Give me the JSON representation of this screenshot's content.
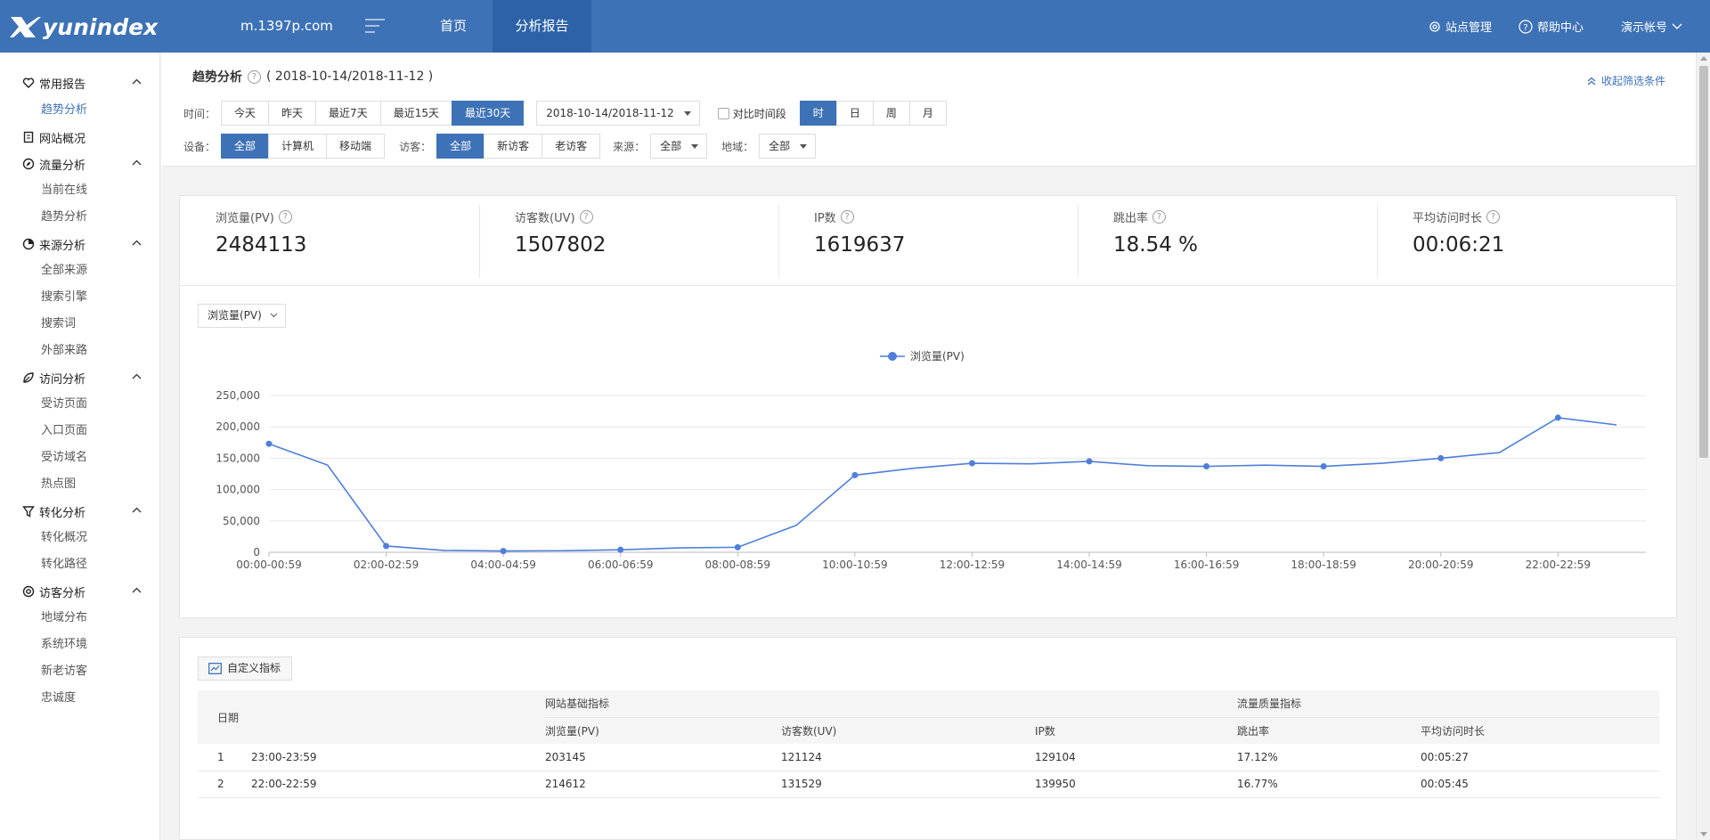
{
  "header": {
    "logo_text": "yunindex",
    "domain": "m.1397p.com",
    "nav": [
      {
        "label": "首页"
      },
      {
        "label": "分析报告"
      }
    ],
    "right": [
      {
        "label": "站点管理",
        "icon": "gear-icon"
      },
      {
        "label": "帮助中心",
        "icon": "help-icon"
      },
      {
        "label": "演示帐号",
        "icon": "chevron-down-icon"
      }
    ]
  },
  "sidebar": {
    "groups": [
      {
        "label": "常用报告",
        "icon": "heart-icon",
        "items": [
          "趋势分析"
        ]
      },
      {
        "label": "网站概况",
        "icon": "doc-icon",
        "items": []
      },
      {
        "label": "流量分析",
        "icon": "compass-icon",
        "items": [
          "当前在线",
          "趋势分析"
        ]
      },
      {
        "label": "来源分析",
        "icon": "pie-icon",
        "items": [
          "全部来源",
          "搜索引擎",
          "搜索词",
          "外部来路"
        ]
      },
      {
        "label": "访问分析",
        "icon": "leaf-icon",
        "items": [
          "受访页面",
          "入口页面",
          "受访域名",
          "热点图"
        ]
      },
      {
        "label": "转化分析",
        "icon": "funnel-icon",
        "items": [
          "转化概况",
          "转化路径"
        ]
      },
      {
        "label": "访客分析",
        "icon": "at-icon",
        "items": [
          "地域分布",
          "系统环境",
          "新老访客",
          "忠诚度"
        ]
      }
    ]
  },
  "filters": {
    "title": "趋势分析",
    "range_text": "( 2018-10-14/2018-11-12 )",
    "collapse_label": "收起筛选条件",
    "time_label": "时间：",
    "time_buttons": [
      "今天",
      "昨天",
      "最近7天",
      "最近15天",
      "最近30天"
    ],
    "time_active": "最近30天",
    "date_range": "2018-10-14/2018-11-12",
    "compare_label": "对比时间段",
    "granularity": [
      "时",
      "日",
      "周",
      "月"
    ],
    "granularity_active": "时",
    "device_label": "设备：",
    "device_buttons": [
      "全部",
      "计算机",
      "移动端"
    ],
    "visitor_label": "访客：",
    "visitor_buttons": [
      "全部",
      "新访客",
      "老访客"
    ],
    "source_label": "来源：",
    "source_value": "全部",
    "region_label": "地域：",
    "region_value": "全部"
  },
  "kpis": [
    {
      "label": "浏览量(PV)",
      "value": "2484113"
    },
    {
      "label": "访客数(UV)",
      "value": "1507802"
    },
    {
      "label": "IP数",
      "value": "1619637"
    },
    {
      "label": "跳出率",
      "value": "18.54 %"
    },
    {
      "label": "平均访问时长",
      "value": "00:06:21"
    }
  ],
  "metric_select": "浏览量(PV)",
  "chart_data": {
    "type": "line",
    "legend": "浏览量(PV)",
    "legend_position": "top-center",
    "color": "#4f7fd9",
    "x": [
      "00:00-00:59",
      "01:00-01:59",
      "02:00-02:59",
      "03:00-03:59",
      "04:00-04:59",
      "05:00-05:59",
      "06:00-06:59",
      "07:00-07:59",
      "08:00-08:59",
      "09:00-09:59",
      "10:00-10:59",
      "11:00-11:59",
      "12:00-12:59",
      "13:00-13:59",
      "14:00-14:59",
      "15:00-15:59",
      "16:00-16:59",
      "17:00-17:59",
      "18:00-18:59",
      "19:00-19:59",
      "20:00-20:59",
      "21:00-21:59",
      "22:00-22:59",
      "23:00-23:59"
    ],
    "x_tick_labels": [
      "00:00-00:59",
      "02:00-02:59",
      "04:00-04:59",
      "06:00-06:59",
      "08:00-08:59",
      "10:00-10:59",
      "12:00-12:59",
      "14:00-14:59",
      "16:00-16:59",
      "18:00-18:59",
      "20:00-20:59",
      "22:00-22:59"
    ],
    "values": [
      173000,
      139000,
      10000,
      3000,
      2000,
      2500,
      4000,
      7000,
      8000,
      43000,
      123000,
      134000,
      142000,
      141000,
      145000,
      138000,
      137000,
      139000,
      137000,
      142000,
      150000,
      159000,
      214612,
      203145
    ],
    "y_ticks": [
      "0",
      "50,000",
      "100,000",
      "150,000",
      "200,000",
      "250,000"
    ],
    "ylim": [
      0,
      250000
    ],
    "grid": true
  },
  "table": {
    "custom_label": "自定义指标",
    "head_date": "日期",
    "group1": "网站基础指标",
    "group2": "流量质量指标",
    "columns": [
      "浏览量(PV)",
      "访客数(UV)",
      "IP数",
      "跳出率",
      "平均访问时长"
    ],
    "rows": [
      {
        "idx": "1",
        "date": "23:00-23:59",
        "pv": "203145",
        "uv": "121124",
        "ip": "129104",
        "bounce": "17.12%",
        "avg": "00:05:27"
      },
      {
        "idx": "2",
        "date": "22:00-22:59",
        "pv": "214612",
        "uv": "131529",
        "ip": "139950",
        "bounce": "16.77%",
        "avg": "00:05:45"
      }
    ]
  }
}
